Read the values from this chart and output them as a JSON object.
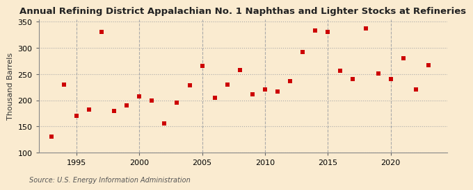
{
  "title": "Annual Refining District Appalachian No. 1 Naphthas and Lighter Stocks at Refineries",
  "ylabel": "Thousand Barrels",
  "source": "Source: U.S. Energy Information Administration",
  "background_color": "#faebd0",
  "plot_bg_color": "#faebd0",
  "marker_color": "#cc0000",
  "marker_size": 25,
  "years": [
    1993,
    1994,
    1995,
    1996,
    1997,
    1998,
    1999,
    2000,
    2001,
    2002,
    2003,
    2004,
    2005,
    2006,
    2007,
    2008,
    2009,
    2010,
    2011,
    2012,
    2013,
    2014,
    2015,
    2016,
    2017,
    2018,
    2019,
    2020,
    2021,
    2022,
    2023
  ],
  "values": [
    130,
    230,
    170,
    182,
    330,
    180,
    190,
    207,
    200,
    155,
    195,
    228,
    265,
    204,
    230,
    258,
    211,
    220,
    217,
    237,
    292,
    333,
    331,
    256,
    241,
    337,
    251,
    240,
    280,
    220,
    267
  ],
  "xlim": [
    1992.0,
    2024.5
  ],
  "ylim": [
    100,
    355
  ],
  "yticks": [
    100,
    150,
    200,
    250,
    300,
    350
  ],
  "xticks": [
    1995,
    2000,
    2005,
    2010,
    2015,
    2020
  ],
  "title_fontsize": 9.5,
  "axis_fontsize": 8,
  "source_fontsize": 7,
  "grid_color": "#aaaaaa",
  "grid_style": "--"
}
